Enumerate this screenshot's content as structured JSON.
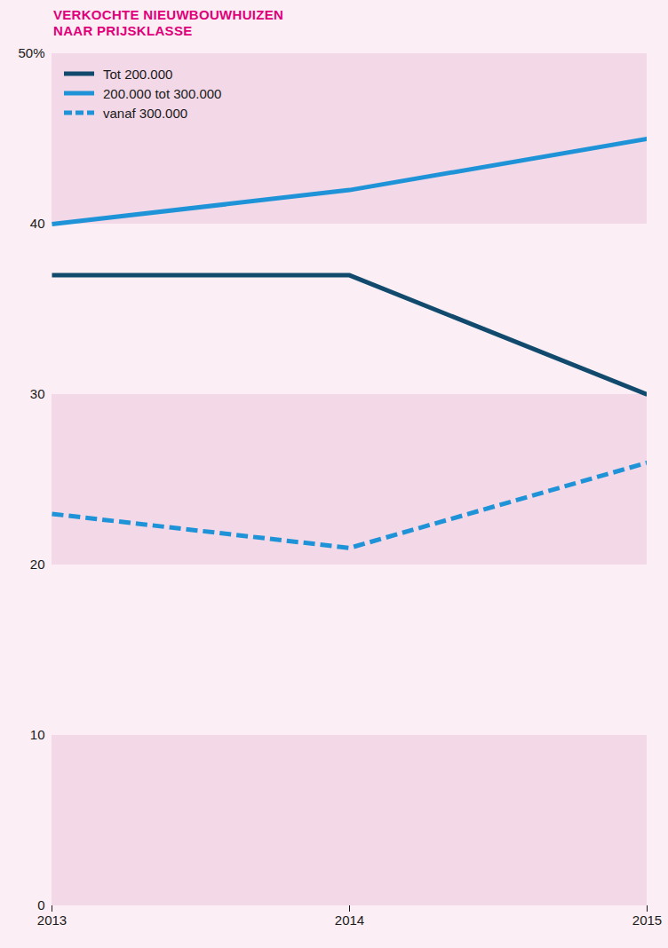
{
  "chart_data": {
    "type": "line",
    "title": "VERKOCHTE NIEUWBOUWHUIZEN NAAR PRIJSKLASSE",
    "x": [
      2013,
      2014,
      2015
    ],
    "series": [
      {
        "name": "Tot 200.000",
        "color": "#124a6e",
        "line_style": "solid",
        "values": [
          37,
          37,
          30
        ]
      },
      {
        "name": "200.000 tot 300.000",
        "color": "#1f93d8",
        "line_style": "solid",
        "values": [
          40,
          42,
          45
        ]
      },
      {
        "name": "vanaf 300.000",
        "color": "#1f93d8",
        "line_style": "dashed",
        "values": [
          23,
          21,
          26
        ]
      }
    ],
    "xlim": [
      2013,
      2015
    ],
    "xticks": [
      2013,
      2014,
      2015
    ],
    "ylim": [
      0,
      50
    ],
    "yticks": [
      0,
      10,
      20,
      30,
      40,
      {
        "value": 50,
        "label": "50%"
      }
    ],
    "grid": true,
    "legend": "top-left"
  }
}
